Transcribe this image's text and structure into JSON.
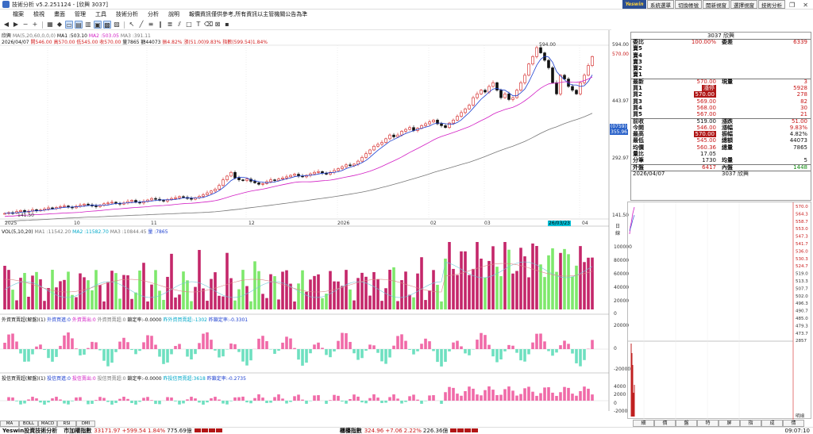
{
  "window": {
    "title": "技術分析 v5.2.251124 - [欣興 3037]",
    "controls": [
      "—",
      "❐",
      "✕"
    ]
  },
  "menu": [
    "檔案",
    "檢視",
    "畫面",
    "管理",
    "工具",
    "技術分析",
    "分析",
    "說明",
    "報價資訊僅供參考,所有資訊以主管機關公告為準"
  ],
  "topbar": {
    "logo": "Yeswin",
    "buttons": [
      "系統選單",
      "切換帳號",
      "開新視窗",
      "選擇視窗",
      "技術分析"
    ]
  },
  "chart_header": {
    "line1": {
      "stock": "欣興",
      "ma_params": "MA(5,20,60,0,0,0)",
      "ma1": "MA1 :503.10",
      "ma2": "MA2 :503.05",
      "ma3": "MA3 :391.11"
    },
    "line2": {
      "date": "2026/04/07",
      "open": "開546.00",
      "high": "高570.00",
      "low": "低545.00",
      "close": "收570.00",
      "volume": "量7865",
      "amount": "額44073",
      "amp": "振4.82%",
      "chg": "漲(51.00)9.83%",
      "idx": "指數(599.54)1.84%"
    }
  },
  "chart_data": {
    "type": "candlestick",
    "price_axis": {
      "labels": [
        "594.00",
        "570.00",
        "443.97",
        "292.97",
        "141.50"
      ],
      "ylim": [
        141.5,
        594
      ]
    },
    "last_price_tags": [
      "(0759)",
      "355.96"
    ],
    "annotations": {
      "high_label": "594.00",
      "low_label": "141.50"
    },
    "x_ticks": [
      "2025",
      "10",
      "11",
      "12",
      "2026",
      "02",
      "03",
      "04"
    ],
    "cursor_date": "26/03/23",
    "x_axis_unit": "日線",
    "close_path": [
      150,
      152,
      151,
      155,
      158,
      154,
      156,
      160,
      157,
      159,
      162,
      165,
      163,
      166,
      168,
      170,
      167,
      165,
      169,
      172,
      175,
      173,
      170,
      168,
      172,
      176,
      178,
      180,
      177,
      175,
      178,
      182,
      185,
      180,
      178,
      182,
      186,
      190,
      188,
      185,
      183,
      187,
      190,
      192,
      195,
      193,
      190,
      188,
      192,
      196,
      200,
      205,
      210,
      215,
      225,
      240,
      250,
      260,
      245,
      240,
      238,
      242,
      236,
      232,
      228,
      230,
      235,
      240,
      238,
      242,
      245,
      248,
      252,
      255,
      250,
      248,
      252,
      256,
      260,
      262,
      258,
      255,
      260,
      265,
      270,
      275,
      280,
      278,
      282,
      290,
      300,
      310,
      320,
      330,
      335,
      340,
      350,
      360,
      355,
      360,
      370,
      375,
      380,
      372,
      378,
      385,
      390,
      395,
      400,
      390,
      385,
      380,
      392,
      400,
      410,
      420,
      430,
      440,
      460,
      470,
      480,
      475,
      490,
      500,
      480,
      460,
      470,
      455,
      460,
      480,
      500,
      520,
      550,
      570,
      594,
      580,
      560,
      540,
      500,
      470,
      520,
      510,
      490,
      480,
      470,
      500,
      520,
      546,
      570
    ],
    "volume_pane": {
      "label": "VOL(5,10,20)",
      "mv1": "MA1 :11542.20",
      "mv2": "MA2 :11582.70",
      "mv3": "MA3 :10844.45",
      "vol": "量 :7865",
      "axis": [
        "100000",
        "80000",
        "60000",
        "40000",
        "20000",
        "0"
      ]
    },
    "foreign_pane": {
      "label": "外資買賣超(解盤)(1)",
      "buy": "外資買進:0",
      "sell": "外資賣出:0",
      "net": "外資買賣超:0",
      "lock": "鎖定率:-0.0000",
      "cum": "昨外資買賣超:-1302",
      "cum_lock": "昨鎖定率:-0.3301",
      "axis": [
        "20000",
        "0",
        "-20000"
      ]
    },
    "invest_pane": {
      "label": "投信買賣超(解盤)(1)",
      "buy": "投信買進:0",
      "sell": "投信賣出:0",
      "net": "投信買賣超:0",
      "lock": "鎖定率:-0.0000",
      "cum": "昨投信買賣超:3618",
      "cum_lock": "昨鎖定率:-0.2735",
      "axis": [
        "4000",
        "2000",
        "0",
        "-2000"
      ]
    }
  },
  "bottom_tabs": [
    "MA",
    "BOLL",
    "MACD",
    "RSI",
    "DMI"
  ],
  "statusbar": {
    "title": "Yeswin投資技術分析",
    "twse": "市加權指數",
    "twse_val": "33171.97",
    "twse_chg": "+599.54",
    "twse_pct": "1.84%",
    "twse_amt": "775.69億",
    "otc": "櫃檯指數",
    "otc_val": "324.96",
    "otc_chg": "+7.06",
    "otc_pct": "2.22%",
    "otc_amt": "226.36億",
    "time": "09:07:10"
  },
  "quote": {
    "title": "3037 欣興",
    "weibi": {
      "label": "委比",
      "pct": "100.00%",
      "label2": "委差",
      "val": "6339"
    },
    "asks": [
      {
        "label": "賣5",
        "price": "",
        "qty": ""
      },
      {
        "label": "賣4",
        "price": "",
        "qty": ""
      },
      {
        "label": "賣3",
        "price": "",
        "qty": ""
      },
      {
        "label": "賣2",
        "price": "",
        "qty": ""
      },
      {
        "label": "賣1",
        "price": "",
        "qty": ""
      }
    ],
    "latest": {
      "label": "最新",
      "price": "570.00",
      "label2": "現量",
      "val": "3"
    },
    "bids": [
      {
        "label": "買1",
        "price": "漲停",
        "qty": "5928"
      },
      {
        "label": "買2",
        "price": "570.00",
        "qty": "278"
      },
      {
        "label": "買3",
        "price": "569.00",
        "qty": "82"
      },
      {
        "label": "買4",
        "price": "568.00",
        "qty": "30"
      },
      {
        "label": "買5",
        "price": "567.00",
        "qty": "21"
      }
    ],
    "stats": [
      {
        "l1": "前收",
        "v1": "519.00",
        "l2": "漲跌",
        "v2": "51.00"
      },
      {
        "l1": "今開",
        "v1": "546.00",
        "l2": "漲幅",
        "v2": "9.83%"
      },
      {
        "l1": "最高",
        "v1": "570.00",
        "l2": "振幅",
        "v2": "4.82%"
      },
      {
        "l1": "最低",
        "v1": "545.00",
        "l2": "總額",
        "v2": "44073"
      },
      {
        "l1": "均價",
        "v1": "560.36",
        "l2": "總量",
        "v2": "7865"
      },
      {
        "l1": "量比",
        "v1": "17.05",
        "l2": "",
        "v2": ""
      },
      {
        "l1": "分筆",
        "v1": "1730",
        "l2": "均量",
        "v2": "5"
      },
      {
        "l1": "外盤",
        "v1": "6417",
        "l2": "內盤",
        "v2": "1448"
      }
    ],
    "footer": {
      "date": "2026/04/07",
      "stock": "3037 欣興"
    }
  },
  "tick_axis": [
    "570.0",
    "564.3",
    "558.7",
    "553.0",
    "547.3",
    "541.7",
    "536.0",
    "530.3",
    "524.7",
    "519.0",
    "513.3",
    "507.7",
    "502.0",
    "496.3",
    "490.7",
    "485.0",
    "479.3",
    "473.7",
    "2857"
  ],
  "tick_tabs": [
    "細",
    "價",
    "盤",
    "特",
    "屏",
    "指",
    "成",
    "情",
    "報"
  ],
  "tick_footer": "明細"
}
